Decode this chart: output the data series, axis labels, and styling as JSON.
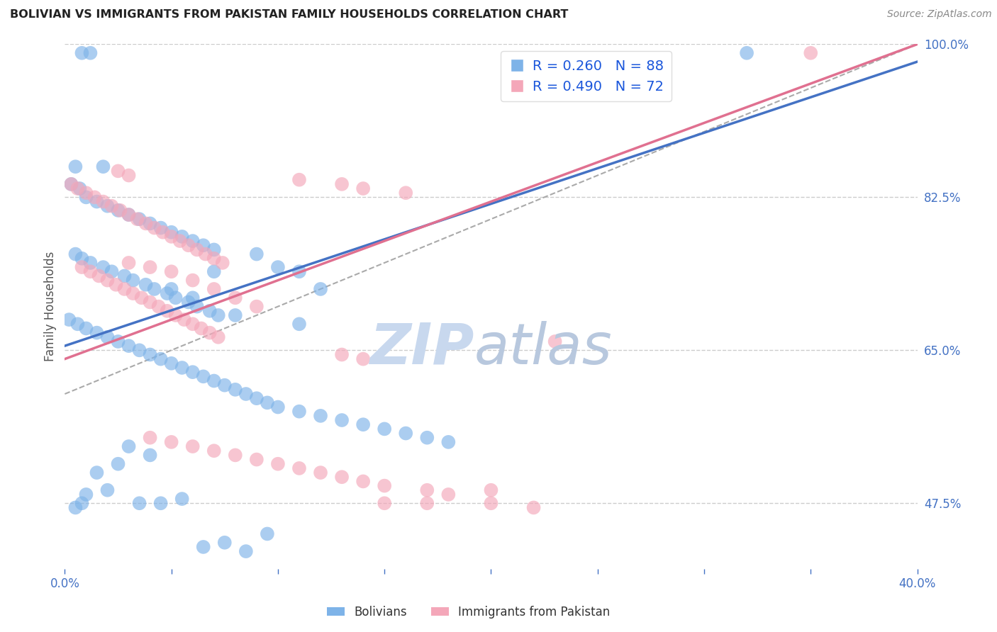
{
  "title": "BOLIVIAN VS IMMIGRANTS FROM PAKISTAN FAMILY HOUSEHOLDS CORRELATION CHART",
  "source": "Source: ZipAtlas.com",
  "ylabel": "Family Households",
  "xlabel": "",
  "legend_blue_label": "Bolivians",
  "legend_pink_label": "Immigrants from Pakistan",
  "blue_R": "R = 0.260",
  "blue_N": "N = 88",
  "pink_R": "R = 0.490",
  "pink_N": "N = 72",
  "title_color": "#222222",
  "source_color": "#888888",
  "axis_label_color": "#555555",
  "tick_color": "#4472C4",
  "grid_color": "#cccccc",
  "blue_color": "#7EB3E8",
  "pink_color": "#F4A7B9",
  "blue_line_color": "#4472C4",
  "pink_line_color": "#E07090",
  "dashed_line_color": "#aaaaaa",
  "watermark_zip_color": "#c8d8ee",
  "watermark_atlas_color": "#b8c8de",
  "x_min": 0.0,
  "x_max": 0.4,
  "y_min": 0.4,
  "y_max": 1.0,
  "blue_line_x0": 0.0,
  "blue_line_y0": 0.655,
  "blue_line_x1": 0.4,
  "blue_line_y1": 0.98,
  "pink_line_x0": 0.0,
  "pink_line_y0": 0.64,
  "pink_line_x1": 0.4,
  "pink_line_y1": 1.0,
  "dash_line_x0": 0.0,
  "dash_line_y0": 0.6,
  "dash_line_x1": 0.4,
  "dash_line_y1": 1.0,
  "blue_x": [
    0.008,
    0.012,
    0.018,
    0.005,
    0.003,
    0.007,
    0.01,
    0.015,
    0.02,
    0.025,
    0.03,
    0.035,
    0.04,
    0.045,
    0.05,
    0.055,
    0.06,
    0.065,
    0.07,
    0.005,
    0.008,
    0.012,
    0.018,
    0.022,
    0.028,
    0.032,
    0.038,
    0.042,
    0.048,
    0.052,
    0.058,
    0.062,
    0.068,
    0.072,
    0.002,
    0.006,
    0.01,
    0.015,
    0.02,
    0.025,
    0.03,
    0.035,
    0.04,
    0.045,
    0.05,
    0.055,
    0.06,
    0.065,
    0.07,
    0.075,
    0.08,
    0.085,
    0.09,
    0.095,
    0.1,
    0.11,
    0.12,
    0.13,
    0.14,
    0.15,
    0.16,
    0.17,
    0.18,
    0.09,
    0.1,
    0.11,
    0.12,
    0.05,
    0.06,
    0.07,
    0.08,
    0.32,
    0.11,
    0.03,
    0.04,
    0.025,
    0.015,
    0.02,
    0.01,
    0.008,
    0.005,
    0.035,
    0.045,
    0.055,
    0.065,
    0.075,
    0.085,
    0.095
  ],
  "blue_y": [
    0.99,
    0.99,
    0.86,
    0.86,
    0.84,
    0.835,
    0.825,
    0.82,
    0.815,
    0.81,
    0.805,
    0.8,
    0.795,
    0.79,
    0.785,
    0.78,
    0.775,
    0.77,
    0.765,
    0.76,
    0.755,
    0.75,
    0.745,
    0.74,
    0.735,
    0.73,
    0.725,
    0.72,
    0.715,
    0.71,
    0.705,
    0.7,
    0.695,
    0.69,
    0.685,
    0.68,
    0.675,
    0.67,
    0.665,
    0.66,
    0.655,
    0.65,
    0.645,
    0.64,
    0.635,
    0.63,
    0.625,
    0.62,
    0.615,
    0.61,
    0.605,
    0.6,
    0.595,
    0.59,
    0.585,
    0.58,
    0.575,
    0.57,
    0.565,
    0.56,
    0.555,
    0.55,
    0.545,
    0.76,
    0.745,
    0.74,
    0.72,
    0.72,
    0.71,
    0.74,
    0.69,
    0.99,
    0.68,
    0.54,
    0.53,
    0.52,
    0.51,
    0.49,
    0.485,
    0.475,
    0.47,
    0.475,
    0.475,
    0.48,
    0.425,
    0.43,
    0.42,
    0.44
  ],
  "pink_x": [
    0.003,
    0.006,
    0.01,
    0.014,
    0.018,
    0.022,
    0.026,
    0.03,
    0.034,
    0.038,
    0.042,
    0.046,
    0.05,
    0.054,
    0.058,
    0.062,
    0.066,
    0.07,
    0.074,
    0.008,
    0.012,
    0.016,
    0.02,
    0.024,
    0.028,
    0.032,
    0.036,
    0.04,
    0.044,
    0.048,
    0.052,
    0.056,
    0.06,
    0.064,
    0.068,
    0.072,
    0.025,
    0.03,
    0.11,
    0.13,
    0.14,
    0.16,
    0.03,
    0.04,
    0.05,
    0.06,
    0.07,
    0.08,
    0.09,
    0.04,
    0.05,
    0.06,
    0.07,
    0.08,
    0.09,
    0.1,
    0.11,
    0.12,
    0.13,
    0.14,
    0.15,
    0.17,
    0.18,
    0.2,
    0.23,
    0.35,
    0.2,
    0.22,
    0.13,
    0.14,
    0.15,
    0.17
  ],
  "pink_y": [
    0.84,
    0.835,
    0.83,
    0.825,
    0.82,
    0.815,
    0.81,
    0.805,
    0.8,
    0.795,
    0.79,
    0.785,
    0.78,
    0.775,
    0.77,
    0.765,
    0.76,
    0.755,
    0.75,
    0.745,
    0.74,
    0.735,
    0.73,
    0.725,
    0.72,
    0.715,
    0.71,
    0.705,
    0.7,
    0.695,
    0.69,
    0.685,
    0.68,
    0.675,
    0.67,
    0.665,
    0.855,
    0.85,
    0.845,
    0.84,
    0.835,
    0.83,
    0.75,
    0.745,
    0.74,
    0.73,
    0.72,
    0.71,
    0.7,
    0.55,
    0.545,
    0.54,
    0.535,
    0.53,
    0.525,
    0.52,
    0.515,
    0.51,
    0.505,
    0.5,
    0.495,
    0.49,
    0.485,
    0.49,
    0.66,
    0.99,
    0.475,
    0.47,
    0.645,
    0.64,
    0.475,
    0.475
  ]
}
